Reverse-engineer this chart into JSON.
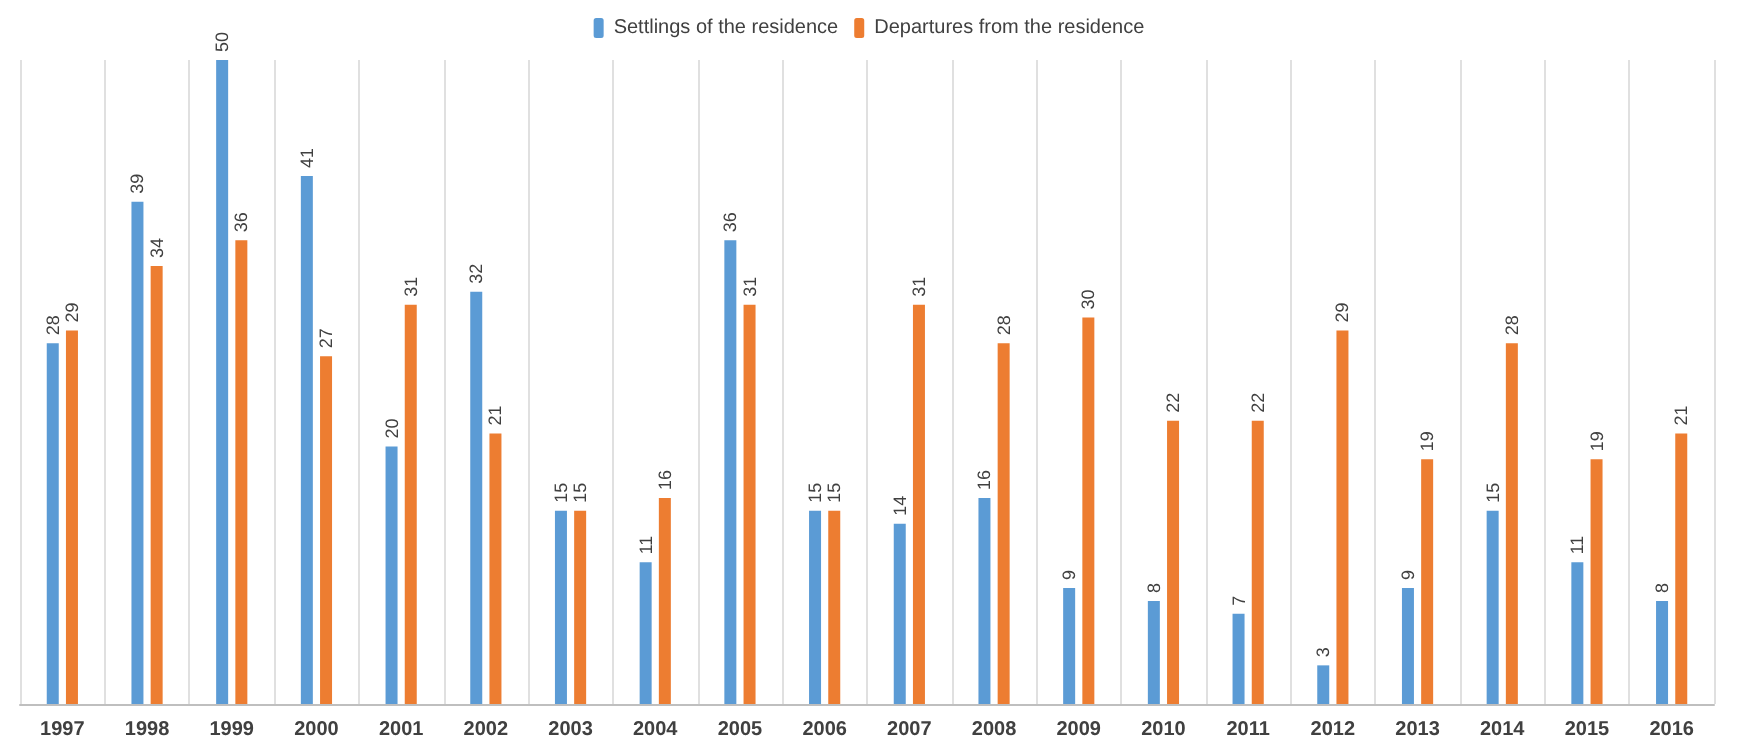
{
  "chart_data": {
    "type": "bar",
    "categories": [
      "1997",
      "1998",
      "1999",
      "2000",
      "2001",
      "2002",
      "2003",
      "2004",
      "2005",
      "2006",
      "2007",
      "2008",
      "2009",
      "2010",
      "2011",
      "2012",
      "2013",
      "2014",
      "2015",
      "2016"
    ],
    "series": [
      {
        "name": "Settlings of the residence",
        "color": "#5b9bd5",
        "values": [
          28,
          39,
          50,
          41,
          20,
          32,
          15,
          11,
          36,
          15,
          14,
          16,
          9,
          8,
          7,
          3,
          9,
          15,
          11,
          8
        ]
      },
      {
        "name": "Departures from the residence",
        "color": "#ed7d31",
        "values": [
          29,
          34,
          36,
          27,
          31,
          21,
          15,
          16,
          31,
          15,
          31,
          28,
          30,
          22,
          22,
          29,
          19,
          28,
          19,
          21
        ]
      }
    ],
    "data_labels": true,
    "grid": "x",
    "legend": "top"
  }
}
